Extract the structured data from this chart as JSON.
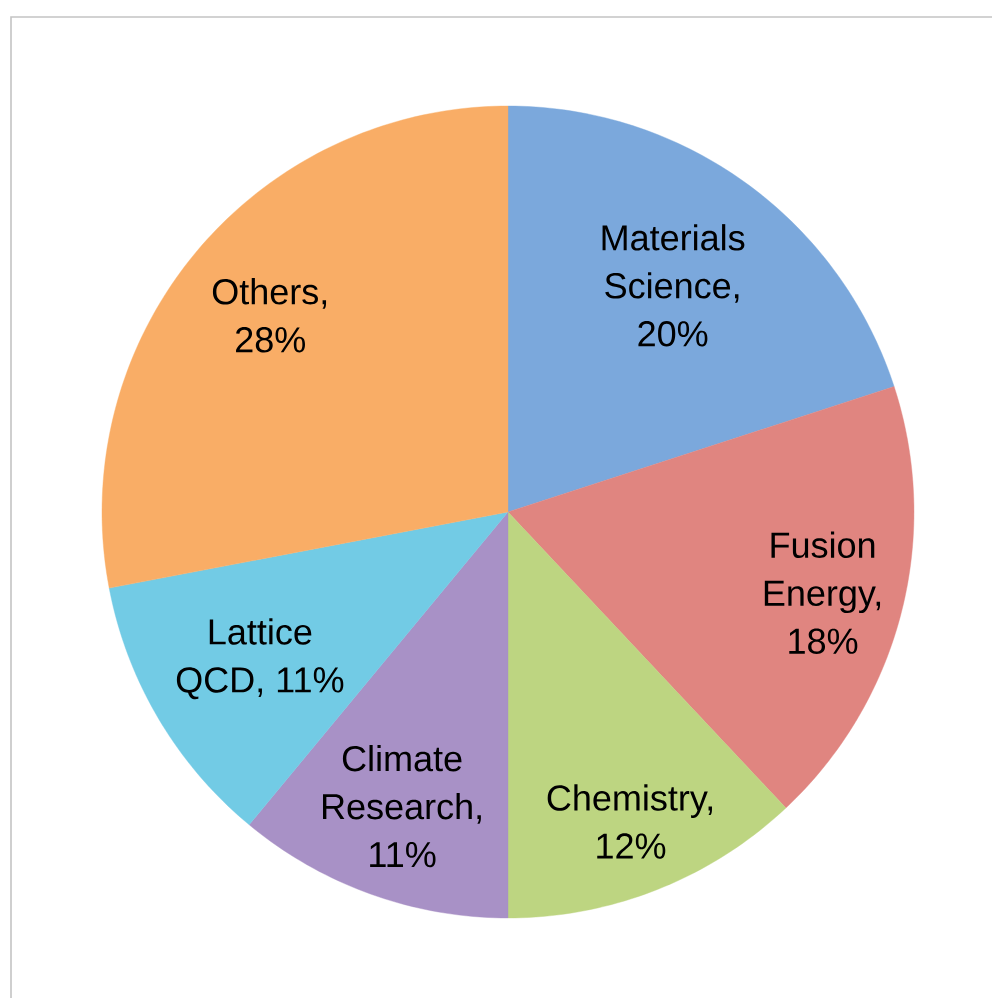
{
  "chart_data": {
    "type": "pie",
    "categories": [
      null,
      null,
      null,
      null,
      null,
      null
    ],
    "values": [
      20,
      18,
      12,
      11,
      11,
      28
    ],
    "colors": [
      "#7ba8dc",
      "#e08580",
      "#bdd581",
      "#a891c6",
      "#72cbe5",
      "#f9ad66"
    ],
    "value_labels": [
      "Materials Science, 20%",
      "Fusion Energy, 18%",
      "Chemistry, 12%",
      "Climate Research, 11%",
      "Lattice QCD, 11%",
      "Others, 28%"
    ]
  }
}
